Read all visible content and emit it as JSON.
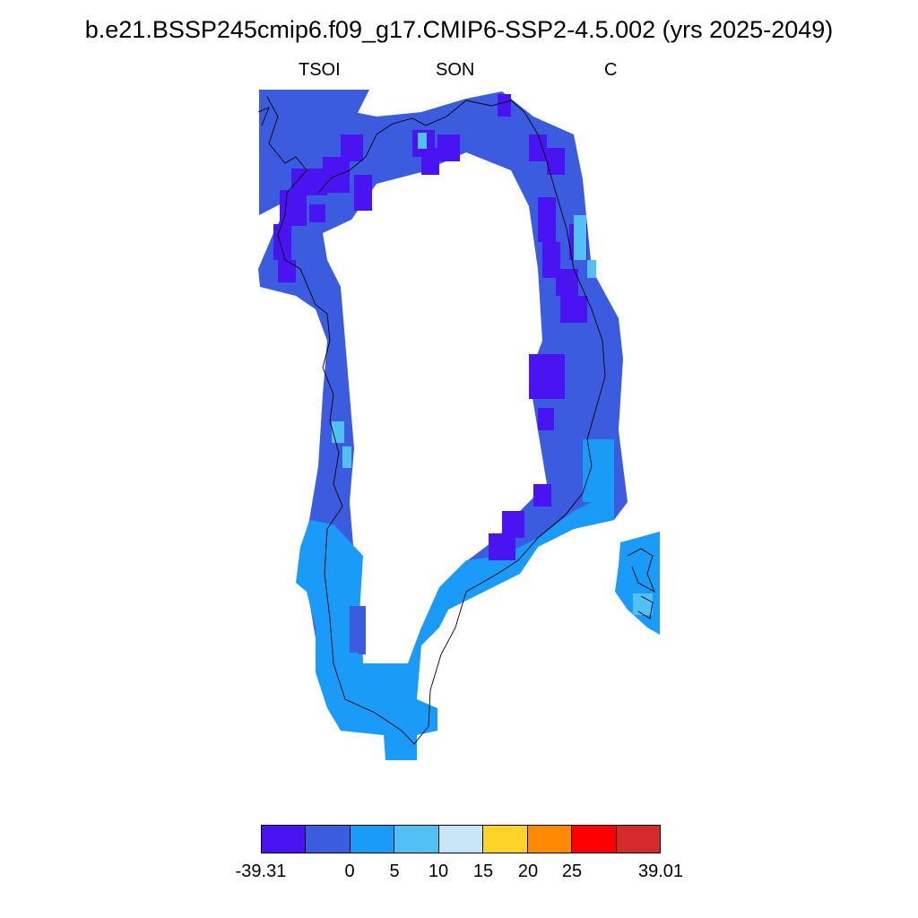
{
  "title": "b.e21.BSSP245cmip6.f09_g17.CMIP6-SSP2-4.5.002 (yrs 2025-2049)",
  "subtitle": {
    "left": "TSOI",
    "center": "SON",
    "right": "C"
  },
  "colors": {
    "c1": "#4a14f2",
    "c2": "#3c5ce0",
    "c3": "#1a9bf8",
    "c4": "#52c0f5",
    "c5": "#c7e6f8",
    "c6": "#fed32a",
    "c7": "#ff8a00",
    "c8": "#ff0000",
    "c9": "#d42a2a",
    "coast": "#000000"
  },
  "colorbar": {
    "boxes": [
      "#4a14f2",
      "#3c5ce0",
      "#1a9bf8",
      "#52c0f5",
      "#c7e6f8",
      "#fed32a",
      "#ff8a00",
      "#ff0000",
      "#d42a2a"
    ],
    "labels": [
      "-39.31",
      "0",
      "5",
      "10",
      "15",
      "20",
      "25",
      "39.01"
    ]
  }
}
